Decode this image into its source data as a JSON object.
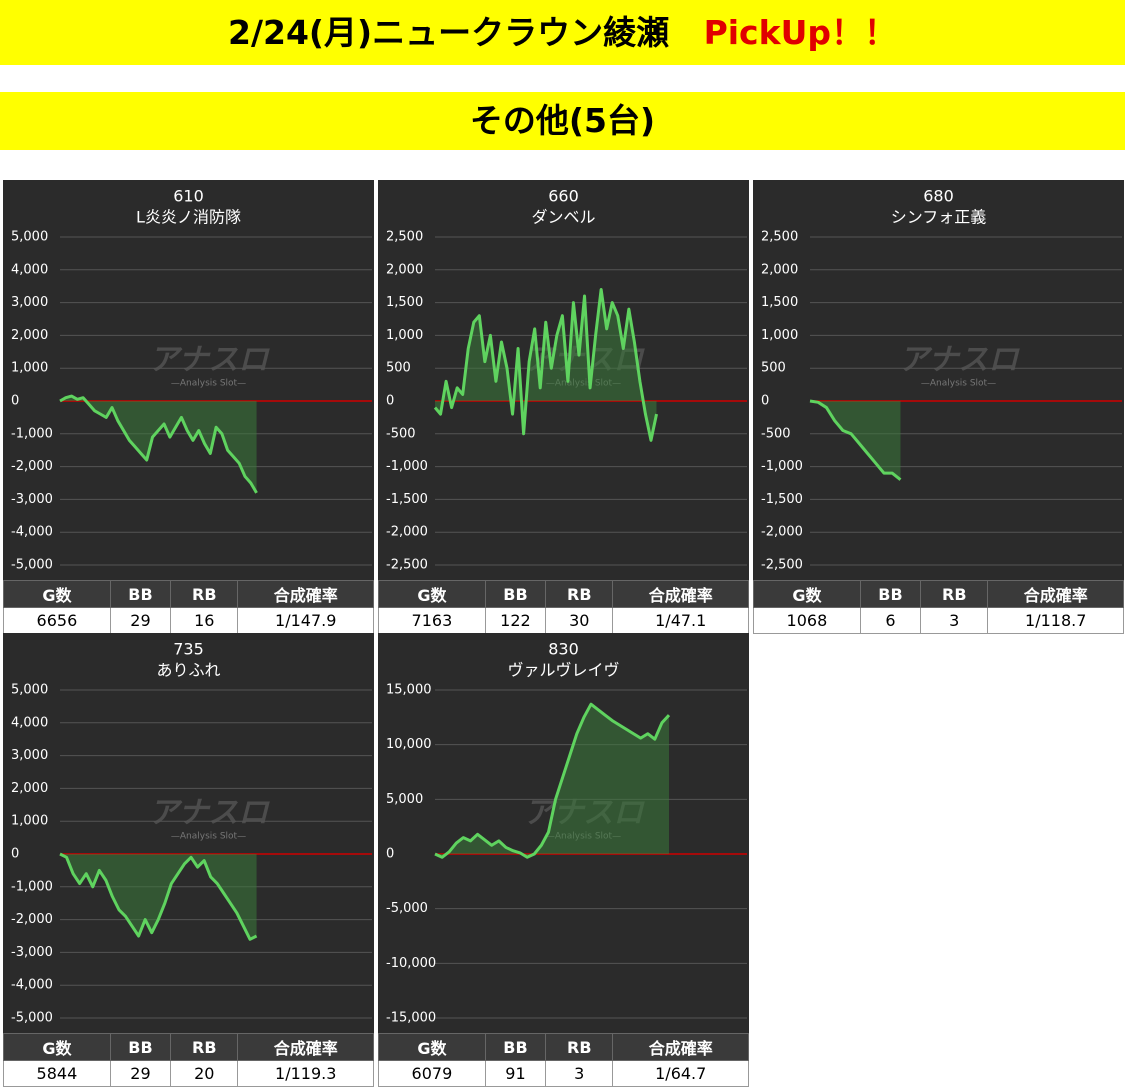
{
  "header": {
    "title": "2/24(月)ニュークラウン綾瀬",
    "highlight": "PickUp！！",
    "subtitle": "その他(5台)"
  },
  "watermark": {
    "title": "アナスロ",
    "subtitle": "—Analysis Slot—"
  },
  "chart_data": [
    {
      "type": "line",
      "title": "610",
      "subtitle": "L炎炎ノ消防隊",
      "color": "#5fd35f",
      "values": [
        0,
        100,
        150,
        50,
        100,
        -100,
        -300,
        -400,
        -500,
        -200,
        -600,
        -900,
        -1200,
        -1400,
        -1600,
        -1800,
        -1100,
        -900,
        -700,
        -1100,
        -800,
        -500,
        -900,
        -1200,
        -900,
        -1300,
        -1600,
        -800,
        -1000,
        -1500,
        -1700,
        -1900,
        -2300,
        -2500,
        -2800
      ],
      "ylim": [
        -5000,
        5000
      ],
      "yticks": [
        {
          "value": 5000,
          "label": "5,000"
        },
        {
          "value": 4000,
          "label": "4,000"
        },
        {
          "value": 3000,
          "label": "3,000"
        },
        {
          "value": 2000,
          "label": "2,000"
        },
        {
          "value": 1000,
          "label": "1,000"
        },
        0,
        {
          "value": -1000,
          "label": "-1,000"
        },
        {
          "value": -2000,
          "label": "-2,000"
        },
        {
          "value": -3000,
          "label": "-3,000"
        },
        {
          "value": -4000,
          "label": "-4,000"
        },
        {
          "value": -5000,
          "label": "-5,000"
        }
      ],
      "table": {
        "header": [
          "G数",
          "BB",
          "RB",
          "合成確率"
        ],
        "row": [
          6656,
          29,
          16,
          "1/147.9"
        ]
      }
    },
    {
      "type": "line",
      "title": "660",
      "subtitle": "ダンベル",
      "color": "#5fd35f",
      "values": [
        -100,
        -200,
        300,
        -100,
        200,
        100,
        800,
        1200,
        1300,
        600,
        1000,
        300,
        900,
        500,
        -200,
        800,
        -500,
        600,
        1100,
        200,
        1200,
        500,
        1000,
        1300,
        300,
        1500,
        700,
        1600,
        200,
        1000,
        1700,
        1100,
        1500,
        1300,
        800,
        1400,
        900,
        300,
        -200,
        -600,
        -200
      ],
      "ylim": [
        -2500,
        2500
      ],
      "yticks": [
        {
          "value": 2500,
          "label": "2,500"
        },
        {
          "value": 2000,
          "label": "2,000"
        },
        {
          "value": 1500,
          "label": "1,500"
        },
        {
          "value": 1000,
          "label": "1,000"
        },
        500,
        0,
        -500,
        {
          "value": -1000,
          "label": "-1,000"
        },
        {
          "value": -1500,
          "label": "-1,500"
        },
        {
          "value": -2000,
          "label": "-2,000"
        },
        {
          "value": -2500,
          "label": "-2,500"
        }
      ],
      "table": {
        "header": [
          "G数",
          "BB",
          "RB",
          "合成確率"
        ],
        "row": [
          7163,
          122,
          30,
          "1/47.1"
        ]
      }
    },
    {
      "type": "line",
      "title": "680",
      "subtitle": "シンフォ正義",
      "color": "#5fd35f",
      "values": [
        0,
        -20,
        -100,
        -300,
        -450,
        -500,
        -650,
        -800,
        -950,
        -1100,
        -1100,
        -1200
      ],
      "ylim": [
        -2500,
        2500
      ],
      "yticks": [
        {
          "value": 2500,
          "label": "2,500"
        },
        {
          "value": 2000,
          "label": "2,000"
        },
        {
          "value": 1500,
          "label": "1,500"
        },
        {
          "value": 1000,
          "label": "1,000"
        },
        500,
        0,
        -500,
        {
          "value": -1000,
          "label": "-1,000"
        },
        {
          "value": -1500,
          "label": "-1,500"
        },
        {
          "value": -2000,
          "label": "-2,000"
        },
        {
          "value": -2500,
          "label": "-2,500"
        }
      ],
      "table": {
        "header": [
          "G数",
          "BB",
          "RB",
          "合成確率"
        ],
        "row": [
          1068,
          6,
          3,
          "1/118.7"
        ]
      }
    },
    {
      "type": "line",
      "title": "735",
      "subtitle": "ありふれ",
      "color": "#5fd35f",
      "values": [
        0,
        -100,
        -600,
        -900,
        -600,
        -1000,
        -500,
        -800,
        -1300,
        -1700,
        -1900,
        -2200,
        -2500,
        -2000,
        -2400,
        -2000,
        -1500,
        -900,
        -600,
        -300,
        -100,
        -400,
        -200,
        -700,
        -900,
        -1200,
        -1500,
        -1800,
        -2200,
        -2600,
        -2500
      ],
      "ylim": [
        -5000,
        5000
      ],
      "yticks": [
        {
          "value": 5000,
          "label": "5,000"
        },
        {
          "value": 4000,
          "label": "4,000"
        },
        {
          "value": 3000,
          "label": "3,000"
        },
        {
          "value": 2000,
          "label": "2,000"
        },
        {
          "value": 1000,
          "label": "1,000"
        },
        0,
        {
          "value": -1000,
          "label": "-1,000"
        },
        {
          "value": -2000,
          "label": "-2,000"
        },
        {
          "value": -3000,
          "label": "-3,000"
        },
        {
          "value": -4000,
          "label": "-4,000"
        },
        {
          "value": -5000,
          "label": "-5,000"
        }
      ],
      "table": {
        "header": [
          "G数",
          "BB",
          "RB",
          "合成確率"
        ],
        "row": [
          5844,
          29,
          20,
          "1/119.3"
        ]
      }
    },
    {
      "type": "line",
      "title": "830",
      "subtitle": "ヴァルヴレイヴ",
      "color": "#5fd35f",
      "values": [
        0,
        -300,
        200,
        1000,
        1500,
        1200,
        1800,
        1300,
        800,
        1200,
        600,
        300,
        100,
        -300,
        0,
        800,
        2000,
        5000,
        7000,
        9000,
        11000,
        12500,
        13700,
        13200,
        12700,
        12200,
        11800,
        11400,
        11000,
        10600,
        11000,
        10500,
        12000,
        12700
      ],
      "ylim": [
        -15000,
        15000
      ],
      "yticks": [
        {
          "value": 15000,
          "label": "15,000"
        },
        {
          "value": 10000,
          "label": "10,000"
        },
        {
          "value": 5000,
          "label": "5,000"
        },
        0,
        {
          "value": -5000,
          "label": "-5,000"
        },
        {
          "value": -10000,
          "label": "-10,000"
        },
        {
          "value": -15000,
          "label": "-15,000"
        }
      ],
      "table": {
        "header": [
          "G数",
          "BB",
          "RB",
          "合成確率"
        ],
        "row": [
          6079,
          91,
          3,
          "1/64.7"
        ]
      }
    }
  ]
}
